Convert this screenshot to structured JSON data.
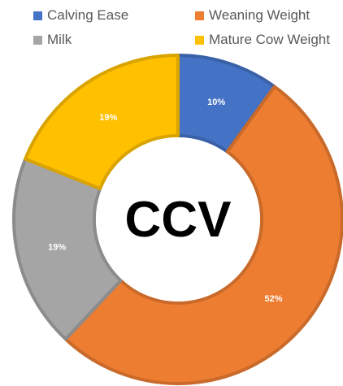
{
  "chart_data": {
    "type": "pie",
    "style": "donut",
    "center_label": "CCV",
    "legend_placement": "top",
    "categories": [
      "Calving Ease",
      "Weaning Weight",
      "Milk",
      "Mature Cow Weight"
    ],
    "values": [
      10,
      52,
      19,
      19
    ],
    "value_labels": [
      "10%",
      "52%",
      "19%",
      "19%"
    ],
    "colors": [
      "#4472C4",
      "#ED7D31",
      "#A5A5A5",
      "#FFC000"
    ]
  }
}
